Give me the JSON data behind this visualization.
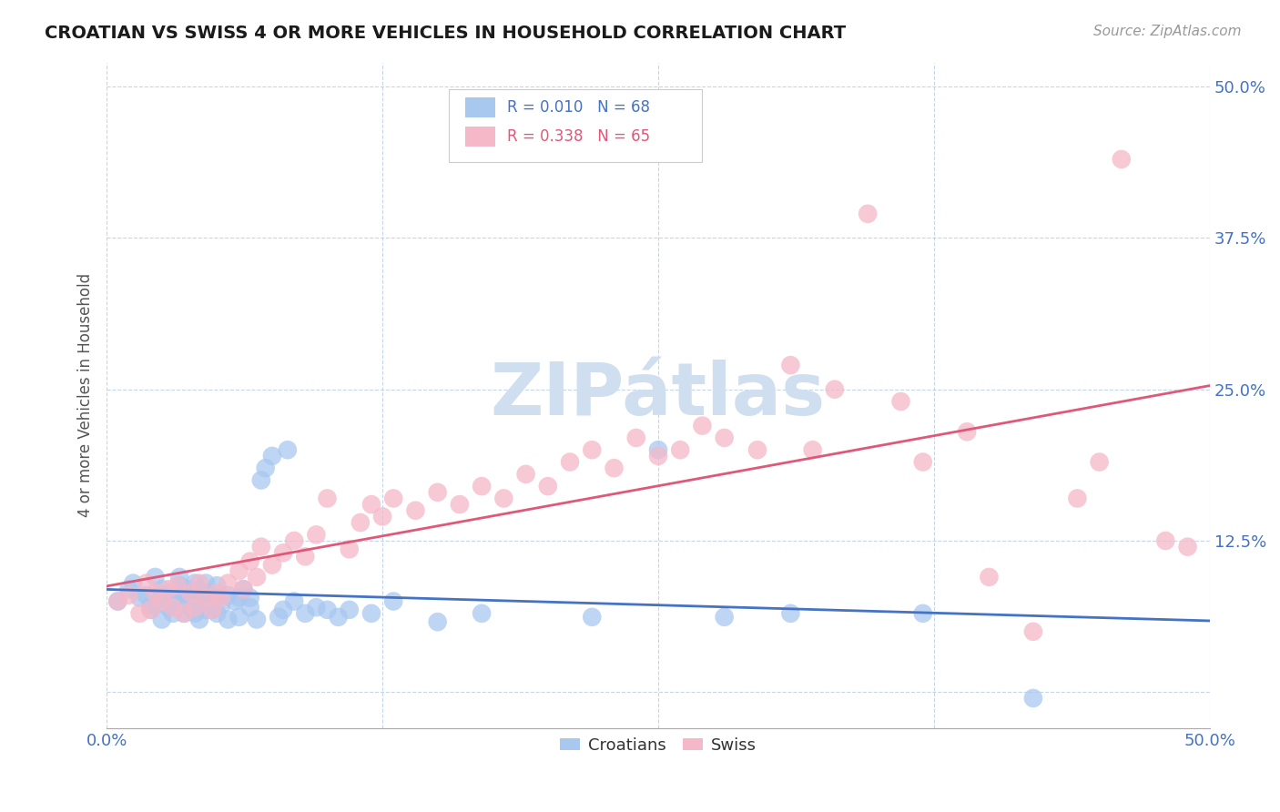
{
  "title": "CROATIAN VS SWISS 4 OR MORE VEHICLES IN HOUSEHOLD CORRELATION CHART",
  "source_text": "Source: ZipAtlas.com",
  "ylabel": "4 or more Vehicles in Household",
  "xlim": [
    0.0,
    0.5
  ],
  "ylim": [
    -0.03,
    0.52
  ],
  "xticks": [
    0.0,
    0.125,
    0.25,
    0.375,
    0.5
  ],
  "yticks": [
    0.0,
    0.125,
    0.25,
    0.375,
    0.5
  ],
  "xticklabels": [
    "0.0%",
    "",
    "",
    "",
    "50.0%"
  ],
  "yticklabels": [
    "",
    "12.5%",
    "25.0%",
    "37.5%",
    "50.0%"
  ],
  "croatian_color": "#a8c8f0",
  "swiss_color": "#f5b8c8",
  "croatian_line_color": "#4472c4",
  "swiss_line_color": "#e05878",
  "background_color": "#ffffff",
  "watermark_color": "#d0dff0",
  "legend_r_croatian": "R = 0.010",
  "legend_n_croatian": "N = 68",
  "legend_r_swiss": "R = 0.338",
  "legend_n_swiss": "N = 65",
  "legend_color_croatian": "#4472c4",
  "legend_color_swiss": "#e05878",
  "croatian_scatter_x": [
    0.005,
    0.01,
    0.012,
    0.015,
    0.018,
    0.02,
    0.02,
    0.022,
    0.025,
    0.025,
    0.025,
    0.028,
    0.028,
    0.03,
    0.03,
    0.032,
    0.033,
    0.033,
    0.035,
    0.035,
    0.035,
    0.038,
    0.038,
    0.04,
    0.04,
    0.04,
    0.042,
    0.042,
    0.045,
    0.045,
    0.045,
    0.047,
    0.048,
    0.05,
    0.05,
    0.05,
    0.052,
    0.055,
    0.055,
    0.058,
    0.06,
    0.06,
    0.062,
    0.065,
    0.065,
    0.068,
    0.07,
    0.072,
    0.075,
    0.078,
    0.08,
    0.082,
    0.085,
    0.09,
    0.095,
    0.1,
    0.105,
    0.11,
    0.12,
    0.13,
    0.15,
    0.17,
    0.22,
    0.25,
    0.28,
    0.31,
    0.37,
    0.42
  ],
  "croatian_scatter_y": [
    0.075,
    0.085,
    0.09,
    0.078,
    0.08,
    0.072,
    0.068,
    0.095,
    0.06,
    0.085,
    0.08,
    0.075,
    0.07,
    0.072,
    0.065,
    0.08,
    0.095,
    0.088,
    0.065,
    0.075,
    0.082,
    0.07,
    0.085,
    0.065,
    0.078,
    0.09,
    0.06,
    0.075,
    0.068,
    0.082,
    0.09,
    0.075,
    0.068,
    0.065,
    0.078,
    0.088,
    0.072,
    0.06,
    0.08,
    0.075,
    0.062,
    0.078,
    0.085,
    0.07,
    0.078,
    0.06,
    0.175,
    0.185,
    0.195,
    0.062,
    0.068,
    0.2,
    0.075,
    0.065,
    0.07,
    0.068,
    0.062,
    0.068,
    0.065,
    0.075,
    0.058,
    0.065,
    0.062,
    0.2,
    0.062,
    0.065,
    0.065,
    -0.005
  ],
  "swiss_scatter_x": [
    0.005,
    0.01,
    0.015,
    0.018,
    0.02,
    0.022,
    0.025,
    0.028,
    0.03,
    0.032,
    0.035,
    0.038,
    0.04,
    0.042,
    0.045,
    0.048,
    0.05,
    0.052,
    0.055,
    0.06,
    0.062,
    0.065,
    0.068,
    0.07,
    0.075,
    0.08,
    0.085,
    0.09,
    0.095,
    0.1,
    0.11,
    0.115,
    0.12,
    0.125,
    0.13,
    0.14,
    0.15,
    0.16,
    0.17,
    0.18,
    0.19,
    0.2,
    0.21,
    0.22,
    0.23,
    0.24,
    0.25,
    0.26,
    0.27,
    0.28,
    0.295,
    0.31,
    0.32,
    0.33,
    0.345,
    0.36,
    0.37,
    0.39,
    0.4,
    0.42,
    0.44,
    0.45,
    0.46,
    0.48,
    0.49
  ],
  "swiss_scatter_y": [
    0.075,
    0.08,
    0.065,
    0.09,
    0.068,
    0.082,
    0.075,
    0.085,
    0.07,
    0.088,
    0.065,
    0.082,
    0.07,
    0.09,
    0.078,
    0.068,
    0.082,
    0.078,
    0.09,
    0.1,
    0.085,
    0.108,
    0.095,
    0.12,
    0.105,
    0.115,
    0.125,
    0.112,
    0.13,
    0.16,
    0.118,
    0.14,
    0.155,
    0.145,
    0.16,
    0.15,
    0.165,
    0.155,
    0.17,
    0.16,
    0.18,
    0.17,
    0.19,
    0.2,
    0.185,
    0.21,
    0.195,
    0.2,
    0.22,
    0.21,
    0.2,
    0.27,
    0.2,
    0.25,
    0.395,
    0.24,
    0.19,
    0.215,
    0.095,
    0.05,
    0.16,
    0.19,
    0.44,
    0.125,
    0.12
  ],
  "swiss_line_start_y": 0.1,
  "swiss_line_end_y": 0.245,
  "croatian_line_y": 0.092,
  "title_fontsize": 14,
  "tick_fontsize": 13,
  "source_fontsize": 11,
  "ylabel_fontsize": 12
}
